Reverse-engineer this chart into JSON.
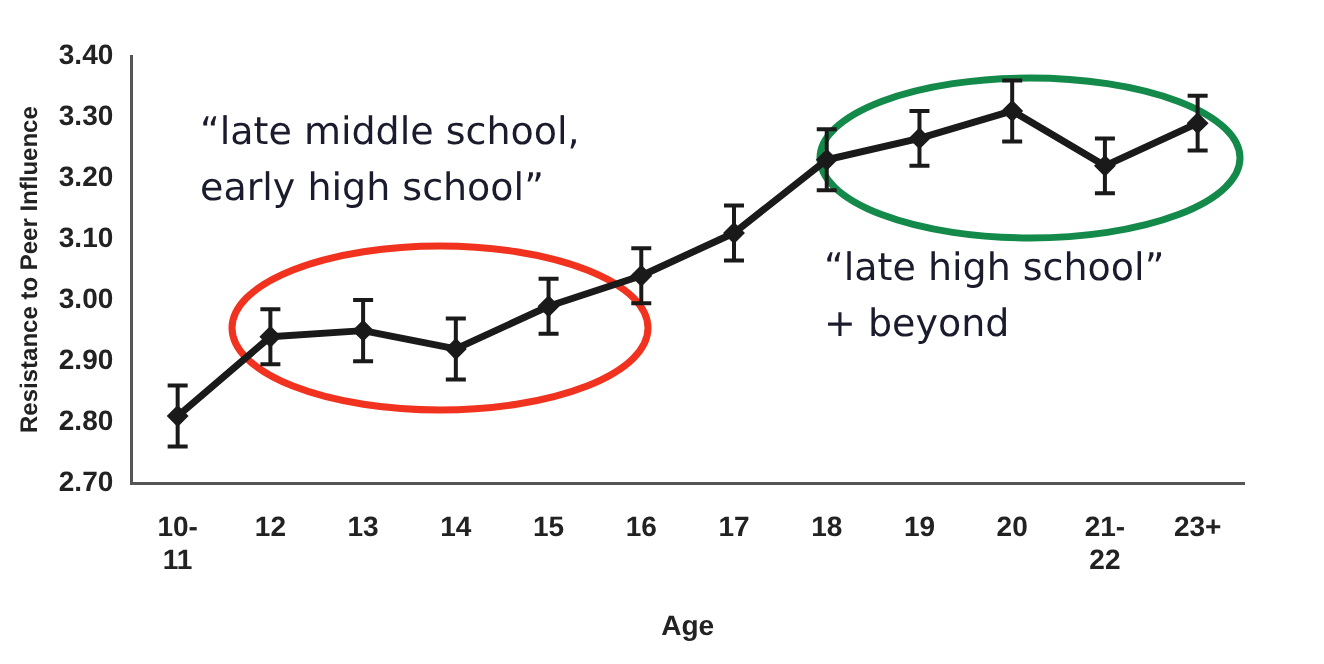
{
  "chart_data": {
    "type": "line",
    "xlabel": "Age",
    "ylabel": "Resistance to Peer Influence",
    "categories": [
      "10-11",
      "12",
      "13",
      "14",
      "15",
      "16",
      "17",
      "18",
      "19",
      "20",
      "21-22",
      "23+"
    ],
    "series": [
      {
        "color": "#1a1a1a",
        "values": [
          2.81,
          2.94,
          2.95,
          2.92,
          2.99,
          3.04,
          3.11,
          3.23,
          3.265,
          3.31,
          3.22,
          3.29
        ],
        "errors": [
          0.05,
          0.045,
          0.05,
          0.05,
          0.045,
          0.045,
          0.045,
          0.05,
          0.045,
          0.05,
          0.045,
          0.045
        ]
      }
    ],
    "ylim": [
      2.7,
      3.4
    ],
    "yticks": [
      {
        "value": 2.7,
        "label": "2.70"
      },
      {
        "value": 2.8,
        "label": "2.80"
      },
      {
        "value": 2.9,
        "label": "2.90"
      },
      {
        "value": 3.0,
        "label": "3.00"
      },
      {
        "value": 3.1,
        "label": "3.10"
      },
      {
        "value": 3.2,
        "label": "3.20"
      },
      {
        "value": 3.3,
        "label": "3.30"
      },
      {
        "value": 3.4,
        "label": "3.40"
      }
    ],
    "grid": false,
    "legend": false,
    "marker": "diamond",
    "line_style": "solid",
    "annotations": [
      "“late middle school,\nearly high school”",
      "“late high school”\n+ beyond"
    ]
  }
}
